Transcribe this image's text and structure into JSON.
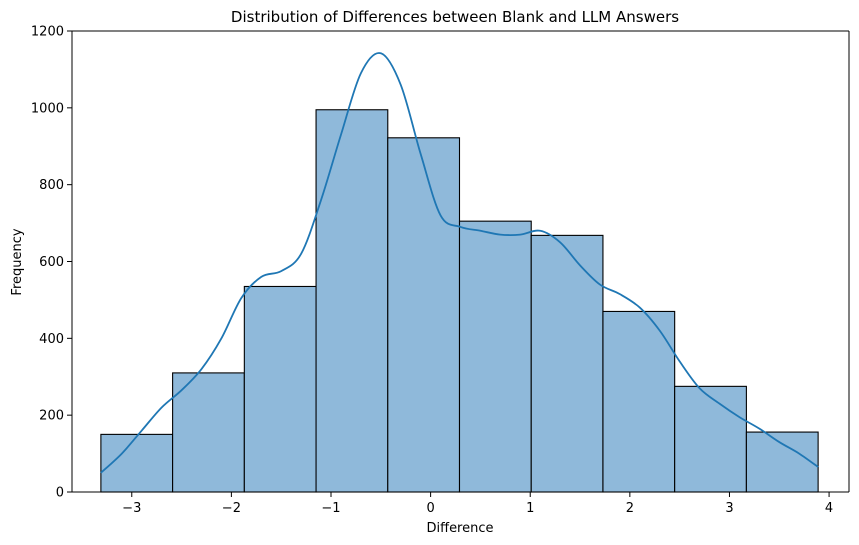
{
  "chart_data": {
    "type": "bar",
    "title": "Distribution of Differences between Blank and LLM Answers",
    "xlabel": "Difference",
    "ylabel": "Frequency",
    "xlim": [
      -3.6,
      4.2
    ],
    "ylim": [
      0,
      1200
    ],
    "xticks": [
      -3,
      -2,
      -1,
      0,
      1,
      2,
      3,
      4
    ],
    "xtick_labels": [
      "−3",
      "−2",
      "−1",
      "0",
      "1",
      "2",
      "3",
      "4"
    ],
    "yticks": [
      0,
      200,
      400,
      600,
      800,
      1000,
      1200
    ],
    "ytick_labels": [
      "0",
      "200",
      "400",
      "600",
      "800",
      "1000",
      "1200"
    ],
    "bin_edges": [
      -3.31,
      -2.59,
      -1.87,
      -1.15,
      -0.43,
      0.29,
      1.01,
      1.73,
      2.45,
      3.17,
      3.89
    ],
    "values": [
      150,
      310,
      535,
      995,
      922,
      705,
      668,
      470,
      275,
      156
    ],
    "kde": {
      "x": [
        -3.31,
        -3.1,
        -2.9,
        -2.7,
        -2.5,
        -2.3,
        -2.1,
        -1.9,
        -1.7,
        -1.5,
        -1.3,
        -1.1,
        -0.9,
        -0.7,
        -0.5,
        -0.3,
        -0.1,
        0.1,
        0.3,
        0.5,
        0.7,
        0.9,
        1.1,
        1.3,
        1.5,
        1.7,
        1.9,
        2.1,
        2.3,
        2.5,
        2.7,
        2.9,
        3.1,
        3.3,
        3.5,
        3.7,
        3.89
      ],
      "y": [
        50,
        100,
        160,
        220,
        265,
        320,
        400,
        505,
        560,
        575,
        620,
        760,
        930,
        1090,
        1142,
        1060,
        880,
        720,
        690,
        680,
        670,
        670,
        680,
        650,
        590,
        540,
        515,
        480,
        420,
        340,
        270,
        230,
        195,
        165,
        130,
        100,
        65
      ]
    },
    "bar_color": "#8fb9da",
    "kde_color": "#1f77b4",
    "grid": false
  }
}
